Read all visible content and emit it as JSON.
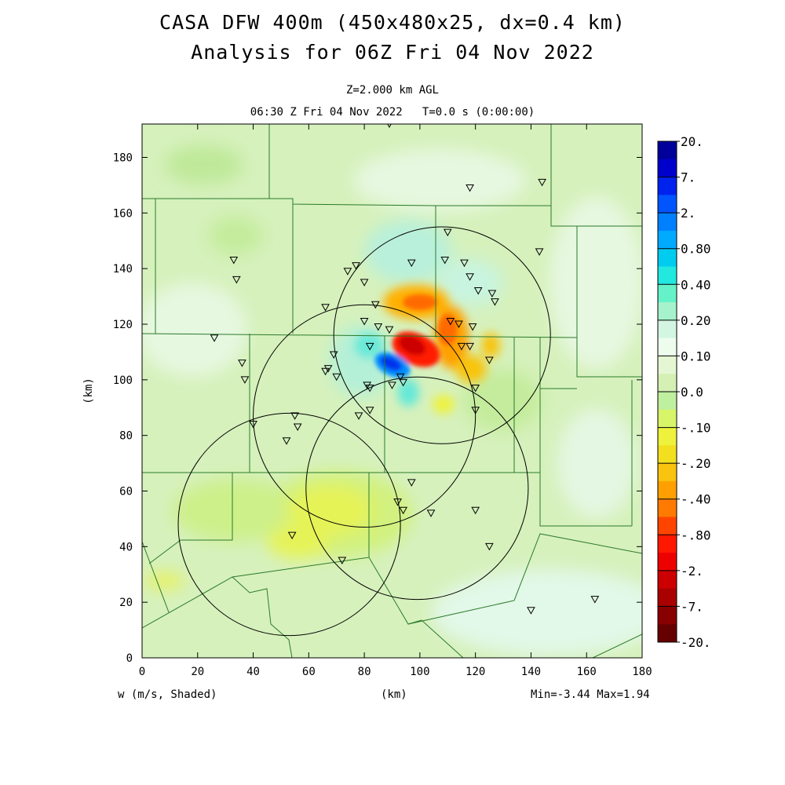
{
  "title_line1": "CASA DFW 400m (450x480x25, dx=0.4 km)",
  "title_line2": "Analysis for 06Z Fri 04 Nov 2022",
  "level_label": "Z=2.000 km AGL",
  "time_label": "06:30 Z Fri 04 Nov 2022   T=0.0 s (0:00:00)",
  "x_axis": {
    "label": "(km)",
    "range": [
      0,
      180
    ],
    "ticks": [
      0,
      20,
      40,
      60,
      80,
      100,
      120,
      140,
      160,
      180
    ]
  },
  "y_axis": {
    "label": "(km)",
    "range": [
      0,
      192
    ],
    "ticks": [
      0,
      20,
      40,
      60,
      80,
      100,
      120,
      140,
      160,
      180
    ]
  },
  "field_label": "w (m/s, Shaded)",
  "minmax_label": "Min=-3.44 Max=1.94",
  "colorbar": {
    "labels": [
      "20.",
      "7.",
      "2.",
      "0.80",
      "0.40",
      "0.20",
      "0.10",
      "0.0",
      "-.10",
      "-.20",
      "-.40",
      "-.80",
      "-2.",
      "-7.",
      "-20."
    ],
    "colors": [
      "#00009a",
      "#0000cc",
      "#0022ee",
      "#0055ff",
      "#0080ff",
      "#00aaff",
      "#00ccf0",
      "#22e8e0",
      "#66f2c8",
      "#a6f2cc",
      "#d2f6e2",
      "#eefcee",
      "#e4f7d2",
      "#d4f0b4",
      "#bff0a0",
      "#d8f468",
      "#eef23c",
      "#f2e020",
      "#f8c410",
      "#ffa000",
      "#ff7a00",
      "#ff4400",
      "#ff1800",
      "#ee0000",
      "#cc0000",
      "#aa0000",
      "#880000",
      "#660000"
    ]
  },
  "radar_rings": [
    {
      "name": "radar-ring-north",
      "cx_km": 108,
      "cy_km": 116,
      "r_km": 39
    },
    {
      "name": "radar-ring-center",
      "cx_km": 80,
      "cy_km": 87,
      "r_km": 40
    },
    {
      "name": "radar-ring-east",
      "cx_km": 99,
      "cy_km": 61,
      "r_km": 40
    },
    {
      "name": "radar-ring-southwest",
      "cx_km": 53,
      "cy_km": 48,
      "r_km": 40
    }
  ],
  "stations_km": [
    [
      89,
      192
    ],
    [
      118,
      169
    ],
    [
      144,
      171
    ],
    [
      110,
      153
    ],
    [
      143,
      146
    ],
    [
      33,
      143
    ],
    [
      34,
      136
    ],
    [
      77,
      141
    ],
    [
      74,
      139
    ],
    [
      109,
      143
    ],
    [
      97,
      142
    ],
    [
      116,
      142
    ],
    [
      80,
      135
    ],
    [
      118,
      137
    ],
    [
      121,
      132
    ],
    [
      126,
      131
    ],
    [
      127,
      128
    ],
    [
      66,
      126
    ],
    [
      84,
      127
    ],
    [
      111,
      121
    ],
    [
      114,
      120
    ],
    [
      119,
      119
    ],
    [
      85,
      119
    ],
    [
      80,
      121
    ],
    [
      89,
      118
    ],
    [
      26,
      115
    ],
    [
      69,
      109
    ],
    [
      82,
      112
    ],
    [
      115,
      112
    ],
    [
      118,
      112
    ],
    [
      125,
      107
    ],
    [
      36,
      106
    ],
    [
      67,
      104
    ],
    [
      66,
      103
    ],
    [
      70,
      101
    ],
    [
      37,
      100
    ],
    [
      93,
      101
    ],
    [
      94,
      99
    ],
    [
      81,
      98
    ],
    [
      82,
      97
    ],
    [
      90,
      98
    ],
    [
      120,
      97
    ],
    [
      82,
      89
    ],
    [
      120,
      89
    ],
    [
      78,
      87
    ],
    [
      55,
      87
    ],
    [
      56,
      83
    ],
    [
      40,
      84
    ],
    [
      52,
      78
    ],
    [
      97,
      63
    ],
    [
      92,
      56
    ],
    [
      94,
      53
    ],
    [
      104,
      52
    ],
    [
      120,
      53
    ],
    [
      54,
      44
    ],
    [
      72,
      35
    ],
    [
      125,
      40
    ],
    [
      140,
      17
    ],
    [
      163,
      21
    ]
  ]
}
